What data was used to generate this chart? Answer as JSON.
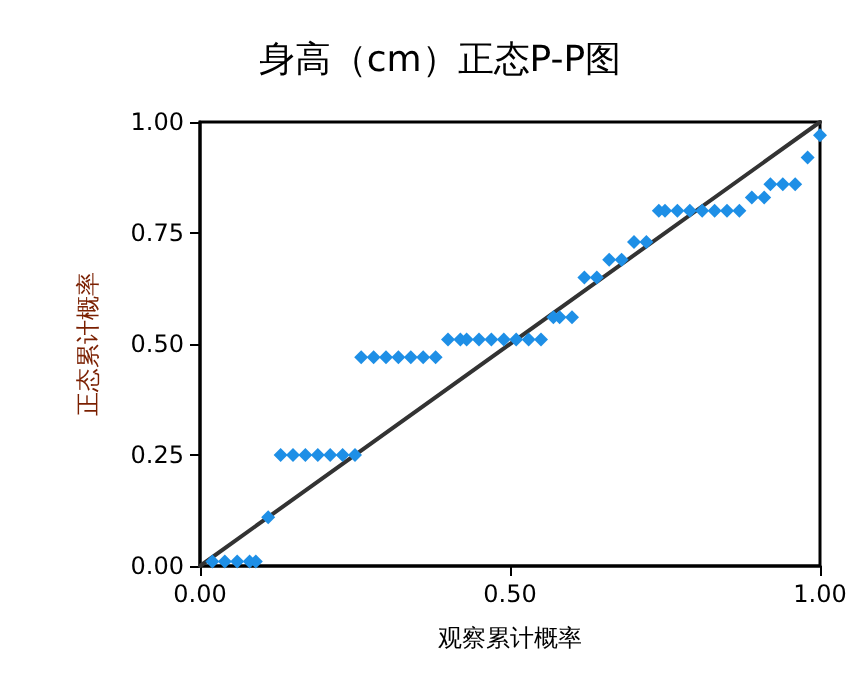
{
  "chart_data": {
    "type": "scatter",
    "title": "身高（cm）正态P-P图",
    "xlabel": "观察累计概率",
    "ylabel": "正态累计概率",
    "xlim": [
      0,
      1
    ],
    "ylim": [
      0,
      1
    ],
    "xticks": [
      {
        "value": 0,
        "label": "0.00"
      },
      {
        "value": 0.5,
        "label": "0.50"
      },
      {
        "value": 1,
        "label": "1.00"
      }
    ],
    "yticks": [
      {
        "value": 0,
        "label": "0.00"
      },
      {
        "value": 0.25,
        "label": "0.25"
      },
      {
        "value": 0.5,
        "label": "0.50"
      },
      {
        "value": 0.75,
        "label": "0.75"
      },
      {
        "value": 1,
        "label": "1.00"
      }
    ],
    "grid": false,
    "series": [
      {
        "marker": "diamond",
        "color": "#1e8fe6",
        "x": [
          0.02,
          0.04,
          0.06,
          0.08,
          0.09,
          0.11,
          0.13,
          0.15,
          0.17,
          0.19,
          0.21,
          0.23,
          0.25,
          0.26,
          0.28,
          0.3,
          0.32,
          0.34,
          0.36,
          0.38,
          0.4,
          0.42,
          0.43,
          0.45,
          0.47,
          0.49,
          0.51,
          0.53,
          0.55,
          0.57,
          0.58,
          0.6,
          0.62,
          0.64,
          0.66,
          0.68,
          0.7,
          0.72,
          0.74,
          0.75,
          0.77,
          0.79,
          0.81,
          0.83,
          0.85,
          0.87,
          0.89,
          0.91,
          0.92,
          0.94,
          0.96,
          0.98,
          1.0
        ],
        "values": [
          0.01,
          0.01,
          0.01,
          0.01,
          0.01,
          0.11,
          0.25,
          0.25,
          0.25,
          0.25,
          0.25,
          0.25,
          0.25,
          0.47,
          0.47,
          0.47,
          0.47,
          0.47,
          0.47,
          0.47,
          0.51,
          0.51,
          0.51,
          0.51,
          0.51,
          0.51,
          0.51,
          0.51,
          0.51,
          0.56,
          0.56,
          0.56,
          0.65,
          0.65,
          0.69,
          0.69,
          0.73,
          0.73,
          0.8,
          0.8,
          0.8,
          0.8,
          0.8,
          0.8,
          0.8,
          0.8,
          0.83,
          0.83,
          0.86,
          0.86,
          0.86,
          0.92,
          0.97
        ]
      },
      {
        "type": "line",
        "marker": "none",
        "line_style": "solid",
        "color": "#333333",
        "x": [
          0,
          1
        ],
        "values": [
          0,
          1
        ]
      }
    ]
  }
}
